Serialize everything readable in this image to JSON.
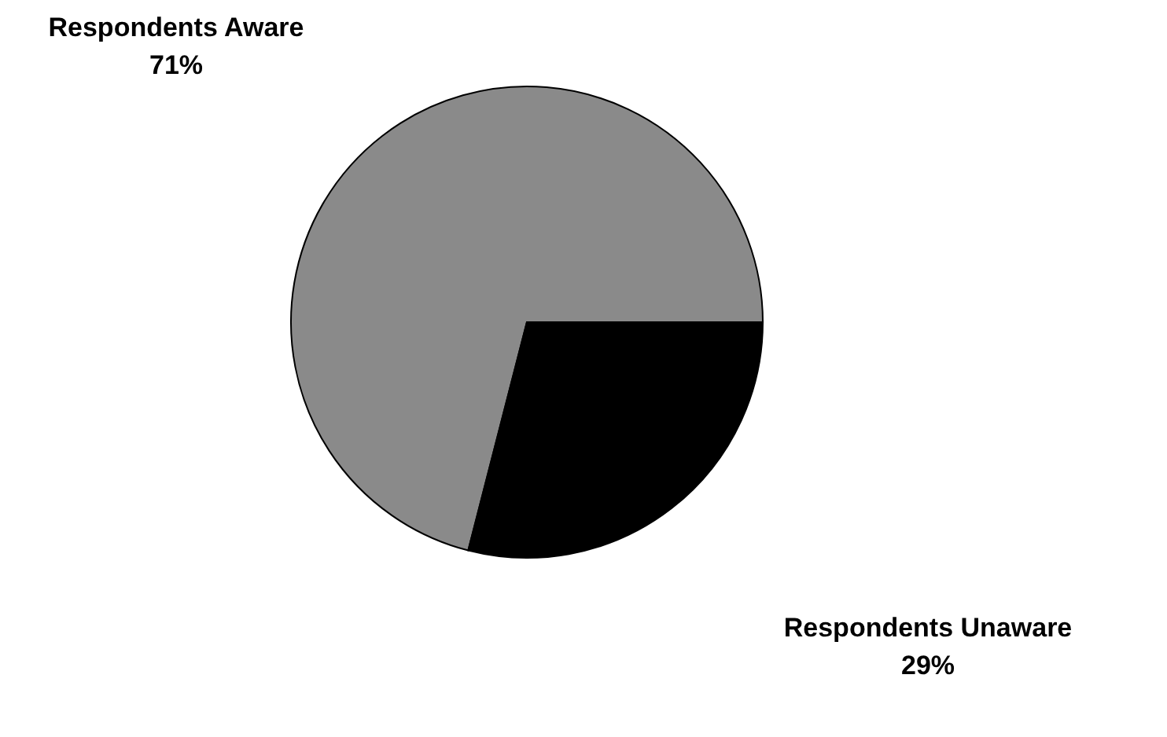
{
  "chart_data": {
    "type": "pie",
    "categories": [
      "Respondents Aware",
      "Respondents Unaware"
    ],
    "values": [
      71,
      29
    ],
    "colors": [
      "#8a8a8a",
      "#000000"
    ],
    "value_labels": [
      "71%",
      "29%"
    ]
  }
}
